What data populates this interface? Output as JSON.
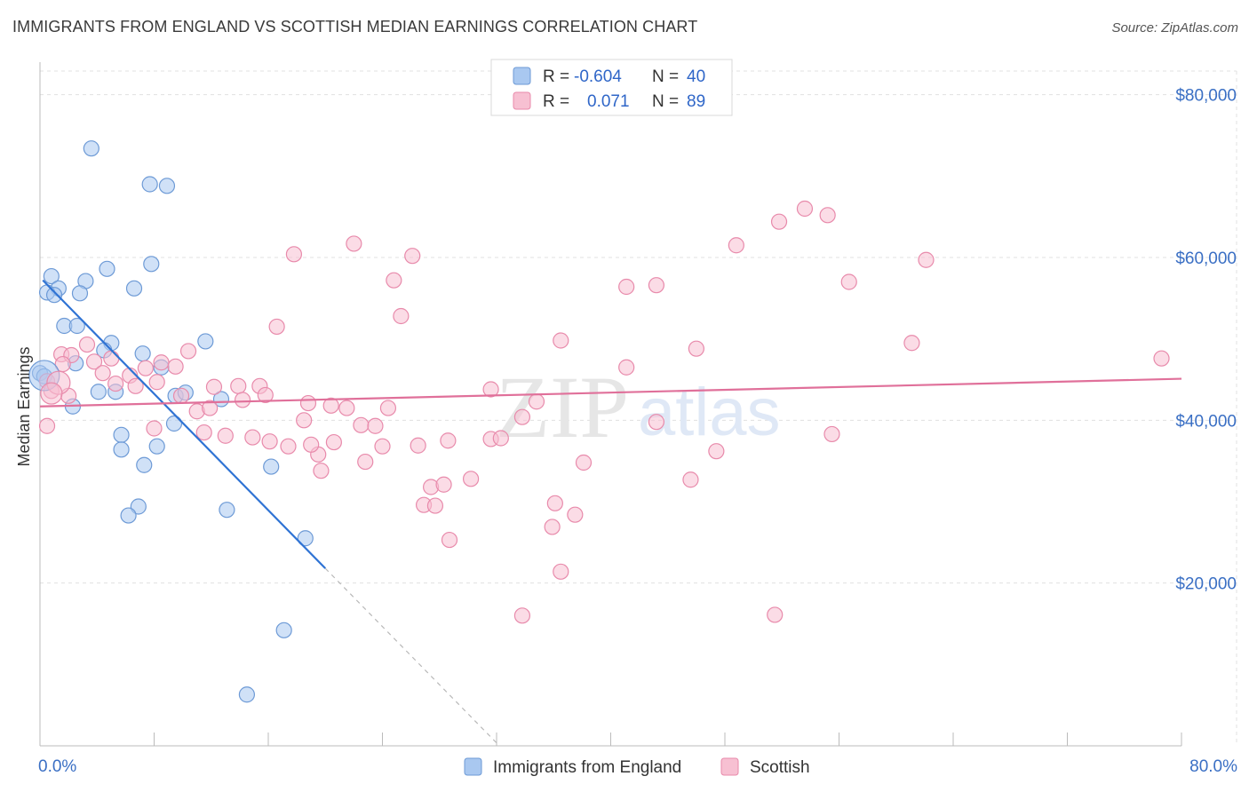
{
  "title": "IMMIGRANTS FROM ENGLAND VS SCOTTISH MEDIAN EARNINGS CORRELATION CHART",
  "source": "Source: ZipAtlas.com",
  "watermark": {
    "part1": "ZIP",
    "part2": "atlas"
  },
  "legend": {
    "rows": [
      {
        "r_label": "R =",
        "r_value": "-0.604",
        "n_label": "N =",
        "n_value": "40",
        "color": "#a9c8f0",
        "stroke": "#6d9ad6"
      },
      {
        "r_label": "R =",
        "r_value": "0.071",
        "n_label": "N =",
        "n_value": "89",
        "color": "#f7c0d2",
        "stroke": "#e88aab"
      }
    ]
  },
  "bottom_legend": [
    {
      "label": "Immigrants from England",
      "color": "#a9c8f0",
      "stroke": "#6d9ad6"
    },
    {
      "label": "Scottish",
      "color": "#f7c0d2",
      "stroke": "#e88aab"
    }
  ],
  "chart_data": {
    "type": "scatter",
    "xlabel": "",
    "ylabel": "Median Earnings",
    "xlim": [
      0,
      80
    ],
    "ylim": [
      0,
      84000
    ],
    "x_tick_labels": [
      "0.0%",
      "80.0%"
    ],
    "y_ticks": [
      {
        "value": 80000,
        "label": "$80,000"
      },
      {
        "value": 60000,
        "label": "$60,000"
      },
      {
        "value": 40000,
        "label": "$40,000"
      },
      {
        "value": 20000,
        "label": "$20,000"
      }
    ],
    "grid": true,
    "series": [
      {
        "name": "Immigrants from England",
        "color": "#a9c8f0",
        "stroke": "#6d9ad6",
        "line_color": "#2f73d4",
        "trend": {
          "x1": 0.2,
          "y1": 57200,
          "x2": 20.0,
          "y2": 21800,
          "dash_x2": 32.2,
          "dash_y2": 0
        },
        "points": [
          [
            3.6,
            73400
          ],
          [
            7.7,
            69000
          ],
          [
            8.9,
            68800
          ],
          [
            4.7,
            58600
          ],
          [
            7.8,
            59200
          ],
          [
            0.8,
            57700
          ],
          [
            3.2,
            57100
          ],
          [
            1.3,
            56200
          ],
          [
            0.5,
            55700
          ],
          [
            1.0,
            55400
          ],
          [
            2.8,
            55600
          ],
          [
            6.6,
            56200
          ],
          [
            1.7,
            51600
          ],
          [
            2.6,
            51600
          ],
          [
            11.6,
            49700
          ],
          [
            5.0,
            49500
          ],
          [
            7.2,
            48200
          ],
          [
            4.5,
            48600
          ],
          [
            2.5,
            47000
          ],
          [
            8.5,
            46500
          ],
          [
            0.0,
            45800
          ],
          [
            4.1,
            43500
          ],
          [
            5.3,
            43500
          ],
          [
            9.5,
            43000
          ],
          [
            10.2,
            43400
          ],
          [
            12.7,
            42600
          ],
          [
            2.3,
            41700
          ],
          [
            9.4,
            39600
          ],
          [
            5.7,
            38200
          ],
          [
            8.2,
            36800
          ],
          [
            5.7,
            36400
          ],
          [
            7.3,
            34500
          ],
          [
            16.2,
            34300
          ],
          [
            6.9,
            29400
          ],
          [
            6.2,
            28300
          ],
          [
            13.1,
            29000
          ],
          [
            18.6,
            25500
          ],
          [
            17.1,
            14200
          ],
          [
            14.5,
            6300
          ],
          [
            0.3,
            45400
          ]
        ]
      },
      {
        "name": "Scottish",
        "color": "#f7c0d2",
        "stroke": "#e88aab",
        "line_color": "#e0709a",
        "trend": {
          "x1": 0.0,
          "y1": 41700,
          "x2": 80.0,
          "y2": 45100
        },
        "points": [
          [
            53.6,
            66000
          ],
          [
            55.2,
            65200
          ],
          [
            51.8,
            64400
          ],
          [
            22.0,
            61700
          ],
          [
            48.8,
            61500
          ],
          [
            17.8,
            60400
          ],
          [
            26.1,
            60200
          ],
          [
            62.1,
            59700
          ],
          [
            24.8,
            57200
          ],
          [
            43.2,
            56600
          ],
          [
            56.7,
            57000
          ],
          [
            41.1,
            56400
          ],
          [
            25.3,
            52800
          ],
          [
            16.6,
            51500
          ],
          [
            36.5,
            49800
          ],
          [
            61.1,
            49500
          ],
          [
            46.0,
            48800
          ],
          [
            78.6,
            47600
          ],
          [
            10.4,
            48500
          ],
          [
            1.5,
            48100
          ],
          [
            2.2,
            48000
          ],
          [
            3.3,
            49300
          ],
          [
            5.0,
            47600
          ],
          [
            3.8,
            47200
          ],
          [
            1.6,
            46900
          ],
          [
            8.5,
            47100
          ],
          [
            7.4,
            46400
          ],
          [
            9.5,
            46600
          ],
          [
            41.1,
            46500
          ],
          [
            4.4,
            45800
          ],
          [
            6.3,
            45500
          ],
          [
            5.3,
            44500
          ],
          [
            6.7,
            44200
          ],
          [
            8.2,
            44700
          ],
          [
            0.5,
            44800
          ],
          [
            12.2,
            44100
          ],
          [
            13.9,
            44200
          ],
          [
            15.4,
            44200
          ],
          [
            31.6,
            43800
          ],
          [
            0.8,
            43600
          ],
          [
            9.9,
            43000
          ],
          [
            15.8,
            43100
          ],
          [
            14.2,
            42500
          ],
          [
            18.8,
            42100
          ],
          [
            20.4,
            41800
          ],
          [
            11.0,
            41100
          ],
          [
            11.9,
            41500
          ],
          [
            21.5,
            41500
          ],
          [
            24.4,
            41500
          ],
          [
            34.8,
            42300
          ],
          [
            0.5,
            39300
          ],
          [
            18.5,
            40000
          ],
          [
            22.5,
            39400
          ],
          [
            23.5,
            39300
          ],
          [
            33.8,
            40400
          ],
          [
            43.2,
            39800
          ],
          [
            13.0,
            38100
          ],
          [
            11.5,
            38500
          ],
          [
            14.9,
            37900
          ],
          [
            16.1,
            37400
          ],
          [
            17.4,
            36800
          ],
          [
            20.6,
            37300
          ],
          [
            24.0,
            36800
          ],
          [
            26.5,
            36900
          ],
          [
            28.6,
            37500
          ],
          [
            31.6,
            37700
          ],
          [
            32.3,
            37800
          ],
          [
            19.5,
            35800
          ],
          [
            22.8,
            34900
          ],
          [
            38.1,
            34800
          ],
          [
            47.4,
            36200
          ],
          [
            55.5,
            38300
          ],
          [
            19.7,
            33800
          ],
          [
            27.4,
            31800
          ],
          [
            28.3,
            32100
          ],
          [
            30.2,
            32800
          ],
          [
            45.6,
            32700
          ],
          [
            26.9,
            29600
          ],
          [
            27.7,
            29500
          ],
          [
            36.1,
            29800
          ],
          [
            37.5,
            28400
          ],
          [
            35.9,
            26900
          ],
          [
            28.7,
            25300
          ],
          [
            36.5,
            21400
          ],
          [
            33.8,
            16000
          ],
          [
            51.5,
            16100
          ],
          [
            19.0,
            37000
          ],
          [
            8.0,
            39000
          ],
          [
            2.0,
            43000
          ]
        ]
      }
    ]
  }
}
